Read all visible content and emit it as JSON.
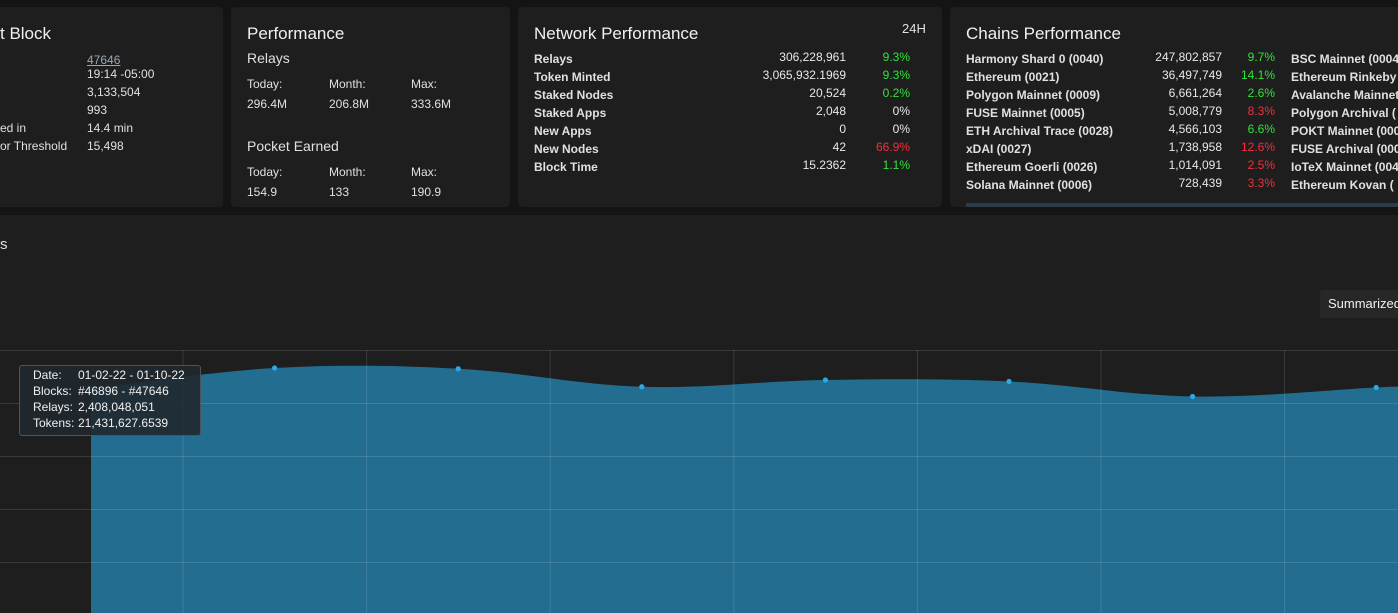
{
  "latest_block": {
    "title": "t Block",
    "block_link": "47646",
    "time": "19:14 -05:00",
    "value_a": "3,133,504",
    "value_b": "993",
    "label_produced": "ed in",
    "produced_in": "14.4 min",
    "label_threshold": "or Threshold",
    "threshold": "15,498"
  },
  "performance": {
    "title": "Performance",
    "relays_label": "Relays",
    "relays": [
      {
        "label": "Today:",
        "value": "296.4M"
      },
      {
        "label": "Month:",
        "value": "206.8M"
      },
      {
        "label": "Max:",
        "value": "333.6M"
      }
    ],
    "earned_label": "Pocket Earned",
    "earned": [
      {
        "label": "Today:",
        "value": "154.9"
      },
      {
        "label": "Month:",
        "value": "133"
      },
      {
        "label": "Max:",
        "value": "190.9"
      }
    ]
  },
  "network": {
    "title": "Network Performance",
    "period": "24H",
    "rows": [
      {
        "label": "Relays",
        "value": "306,228,961",
        "change": "9.3%",
        "trend": "up"
      },
      {
        "label": "Token Minted",
        "value": "3,065,932.1969",
        "change": "9.3%",
        "trend": "up"
      },
      {
        "label": "Staked Nodes",
        "value": "20,524",
        "change": "0.2%",
        "trend": "up"
      },
      {
        "label": "Staked Apps",
        "value": "2,048",
        "change": "0%",
        "trend": "flat"
      },
      {
        "label": "New Apps",
        "value": "0",
        "change": "0%",
        "trend": "flat"
      },
      {
        "label": "New Nodes",
        "value": "42",
        "change": "66.9%",
        "trend": "down"
      },
      {
        "label": "Block Time",
        "value": "15.2362",
        "change": "1.1%",
        "trend": "up"
      }
    ]
  },
  "chains": {
    "title": "Chains Performance",
    "rows": [
      {
        "label": "Harmony Shard 0 (0040)",
        "value": "247,802,857",
        "change": "9.7%",
        "trend": "up"
      },
      {
        "label": "Ethereum (0021)",
        "value": "36,497,749",
        "change": "14.1%",
        "trend": "up"
      },
      {
        "label": "Polygon Mainnet (0009)",
        "value": "6,661,264",
        "change": "2.6%",
        "trend": "up"
      },
      {
        "label": "FUSE Mainnet (0005)",
        "value": "5,008,779",
        "change": "8.3%",
        "trend": "down"
      },
      {
        "label": "ETH Archival Trace (0028)",
        "value": "4,566,103",
        "change": "6.6%",
        "trend": "up"
      },
      {
        "label": "xDAI (0027)",
        "value": "1,738,958",
        "change": "12.6%",
        "trend": "down"
      },
      {
        "label": "Ethereum Goerli (0026)",
        "value": "1,014,091",
        "change": "2.5%",
        "trend": "down"
      },
      {
        "label": "Solana Mainnet (0006)",
        "value": "728,439",
        "change": "3.3%",
        "trend": "down"
      }
    ],
    "right_column": [
      "BSC Mainnet (0004",
      "Ethereum Rinkeby",
      "Avalanche Mainnet",
      "Polygon Archival (",
      "POKT Mainnet (000",
      "FUSE Archival (000",
      "IoTeX Mainnet (004",
      "Ethereum Kovan ("
    ]
  },
  "main": {
    "title": "s",
    "view_button": "Summarized"
  },
  "tooltip": {
    "date_label": "Date:",
    "date": "01-02-22 - 01-10-22",
    "blocks_label": "Blocks:",
    "blocks": "#46896 - #47646",
    "relays_label": "Relays:",
    "relays": "2,408,048,051",
    "tokens_label": "Tokens:",
    "tokens": "21,431,627.6539"
  },
  "colors": {
    "area_fill": "#236d91",
    "point": "#2aa8e8",
    "up": "#33e23a",
    "down": "#f1303a"
  },
  "chart_data": {
    "type": "area",
    "title": "",
    "xlabel": "",
    "ylabel": "",
    "grid": true,
    "series": [
      {
        "values": [
          0.72,
          1.0,
          0.99,
          0.75,
          0.84,
          0.82,
          0.62,
          0.74
        ]
      }
    ]
  }
}
